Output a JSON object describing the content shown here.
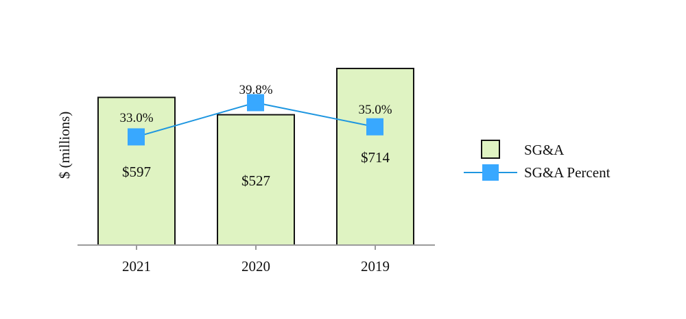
{
  "chart_data": {
    "type": "bar",
    "ylabel": "$ (millions)",
    "xlabel": "",
    "categories": [
      "2021",
      "2020",
      "2019"
    ],
    "series": [
      {
        "name": "SG&A",
        "kind": "bar",
        "values": [
          597,
          527,
          714
        ],
        "labels": [
          "$597",
          "$527",
          "$714"
        ],
        "color": "#dff3c2",
        "stroke": "#111111"
      },
      {
        "name": "SG&A Percent",
        "kind": "line",
        "values": [
          33.0,
          39.8,
          35.0
        ],
        "labels": [
          "33.0%",
          "39.8%",
          "35.0%"
        ],
        "color": "#38a8ff",
        "line_color": "#1e96e0"
      }
    ],
    "ylim": [
      0,
      800
    ],
    "y2lim": [
      0,
      60
    ],
    "grid": false,
    "legend": "right"
  }
}
